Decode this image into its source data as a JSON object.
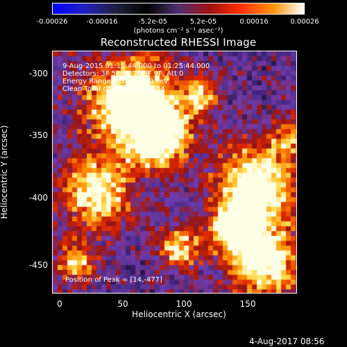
{
  "colorbar": {
    "tick_labels": [
      "-0.00026",
      "-0.00016",
      "-5.2e-05",
      "5.2e-05",
      "0.00016",
      "0.00026"
    ],
    "units": "(photons cm⁻² s⁻¹ asec⁻²)",
    "colors": [
      "#0000ff",
      "#2020c0",
      "#202040",
      "#000000",
      "#503070",
      "#a01010",
      "#ff3000",
      "#ff9000",
      "#ffffff"
    ]
  },
  "title": "Reconstructed RHESSI Image",
  "info": {
    "line1": "9-Aug-2015 01:15:44.000 to 01:25:44.000",
    "line2": "Detectors: 3F 5F 6F 7F 8F 9F, Att 0",
    "line3": "Energy Range: 25.0 - 50.0 keV",
    "line4": "Clean    Total counts: 2.19E+04",
    "peak": "Position of Peak = [14,-477]"
  },
  "axes": {
    "x_label": "Heliocentric X (arcsec)",
    "y_label": "Heliocentric Y (arcsec)",
    "x_ticks": [
      "0",
      "50",
      "100",
      "150"
    ],
    "y_ticks": [
      "-300",
      "-350",
      "-400",
      "-450"
    ]
  },
  "timestamp": "4-Aug-2017 08:56"
}
